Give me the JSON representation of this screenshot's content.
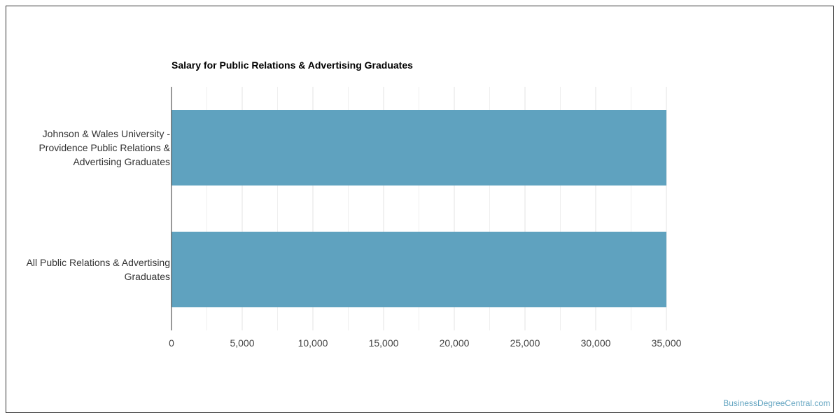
{
  "chart_data": {
    "type": "bar",
    "orientation": "horizontal",
    "title": "Salary for Public Relations & Advertising Graduates",
    "categories": [
      "Johnson & Wales University - Providence Public Relations & Advertising Graduates",
      "All Public Relations & Advertising Graduates"
    ],
    "category_label_lines": [
      [
        "Johnson & Wales University -",
        "Providence Public Relations &",
        "Advertising Graduates"
      ],
      [
        "All Public Relations & Advertising",
        "Graduates"
      ]
    ],
    "values": [
      35000,
      35000
    ],
    "xlim": [
      0,
      35000
    ],
    "x_ticks": [
      0,
      5000,
      10000,
      15000,
      20000,
      25000,
      30000,
      35000
    ],
    "x_tick_labels": [
      "0",
      "5,000",
      "10,000",
      "15,000",
      "20,000",
      "25,000",
      "30,000",
      "35,000"
    ],
    "grid": true,
    "xlabel": "",
    "ylabel": ""
  },
  "colors": {
    "bar": "#5fa2bf",
    "grid": "#e3e3e3",
    "axis": "#333333",
    "watermark": "#5fa2bf"
  },
  "watermark": "BusinessDegreeCentral.com"
}
